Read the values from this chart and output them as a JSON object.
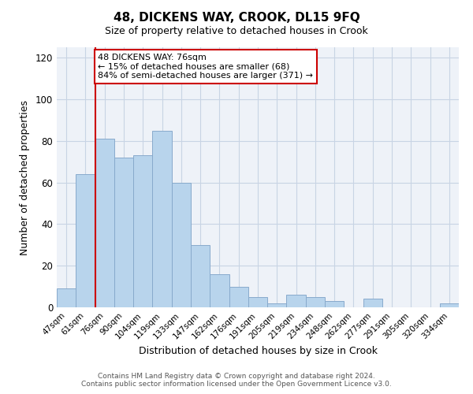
{
  "title": "48, DICKENS WAY, CROOK, DL15 9FQ",
  "subtitle": "Size of property relative to detached houses in Crook",
  "xlabel": "Distribution of detached houses by size in Crook",
  "ylabel": "Number of detached properties",
  "bar_color": "#b8d4ec",
  "bar_edge_color": "#88aacc",
  "categories": [
    "47sqm",
    "61sqm",
    "76sqm",
    "90sqm",
    "104sqm",
    "119sqm",
    "133sqm",
    "147sqm",
    "162sqm",
    "176sqm",
    "191sqm",
    "205sqm",
    "219sqm",
    "234sqm",
    "248sqm",
    "262sqm",
    "277sqm",
    "291sqm",
    "305sqm",
    "320sqm",
    "334sqm"
  ],
  "values": [
    9,
    64,
    81,
    72,
    73,
    85,
    60,
    30,
    16,
    10,
    5,
    2,
    6,
    5,
    3,
    0,
    4,
    0,
    0,
    0,
    2
  ],
  "ylim": [
    0,
    125
  ],
  "yticks": [
    0,
    20,
    40,
    60,
    80,
    100,
    120
  ],
  "vline_x": 2.0,
  "vline_color": "#cc0000",
  "annotation_text": "48 DICKENS WAY: 76sqm\n← 15% of detached houses are smaller (68)\n84% of semi-detached houses are larger (371) →",
  "annotation_box_color": "#ffffff",
  "annotation_box_edge_color": "#cc0000",
  "footer_line1": "Contains HM Land Registry data © Crown copyright and database right 2024.",
  "footer_line2": "Contains public sector information licensed under the Open Government Licence v3.0.",
  "bg_color": "#eef2f8",
  "grid_color": "#c8d4e4"
}
